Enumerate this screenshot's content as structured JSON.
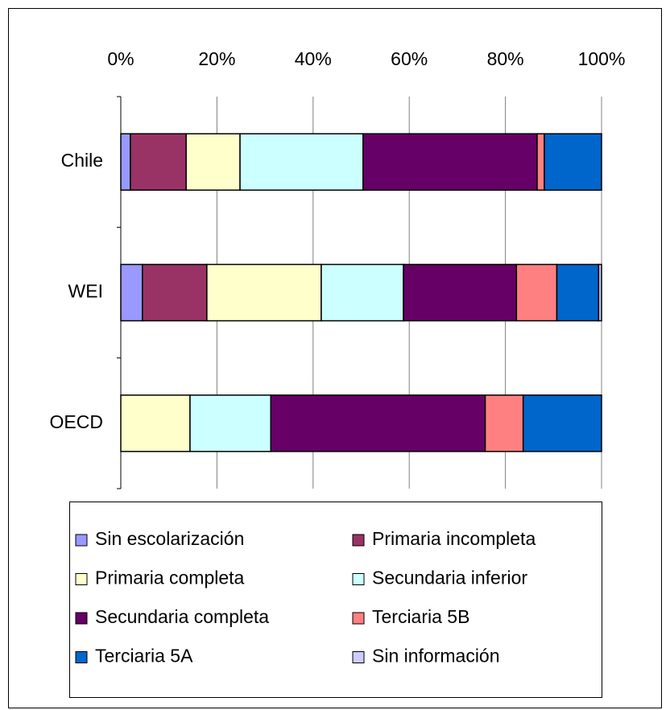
{
  "chart_data": {
    "type": "stacked_barh",
    "categories": [
      "Chile",
      "WEI",
      "OECD"
    ],
    "series": [
      {
        "name": "Sin escolarización",
        "color": "#9999ff",
        "values": [
          2.0,
          4.5,
          0
        ]
      },
      {
        "name": "Primaria incompleta",
        "color": "#993366",
        "values": [
          11.6,
          13.4,
          0
        ]
      },
      {
        "name": "Primaria completa",
        "color": "#ffffcc",
        "values": [
          11.2,
          23.8,
          14.4
        ]
      },
      {
        "name": "Secundaria inferior",
        "color": "#ccffff",
        "values": [
          25.6,
          17.1,
          16.8
        ]
      },
      {
        "name": "Secundaria completa",
        "color": "#660066",
        "values": [
          36.2,
          23.5,
          44.6
        ]
      },
      {
        "name": "Terciaria 5B",
        "color": "#ff8080",
        "values": [
          1.5,
          8.4,
          7.9
        ]
      },
      {
        "name": "Terciaria 5A",
        "color": "#0066cc",
        "values": [
          11.9,
          8.7,
          16.3
        ]
      },
      {
        "name": "Sin información",
        "color": "#ccccff",
        "values": [
          0,
          0.6,
          0
        ]
      }
    ],
    "xlim": [
      0,
      100
    ],
    "xticks": [
      {
        "value": 0,
        "label": "0%"
      },
      {
        "value": 20,
        "label": "20%"
      },
      {
        "value": 40,
        "label": "40%"
      },
      {
        "value": 60,
        "label": "60%"
      },
      {
        "value": 80,
        "label": "80%"
      },
      {
        "value": 100,
        "label": "100%"
      }
    ],
    "grid": true
  }
}
